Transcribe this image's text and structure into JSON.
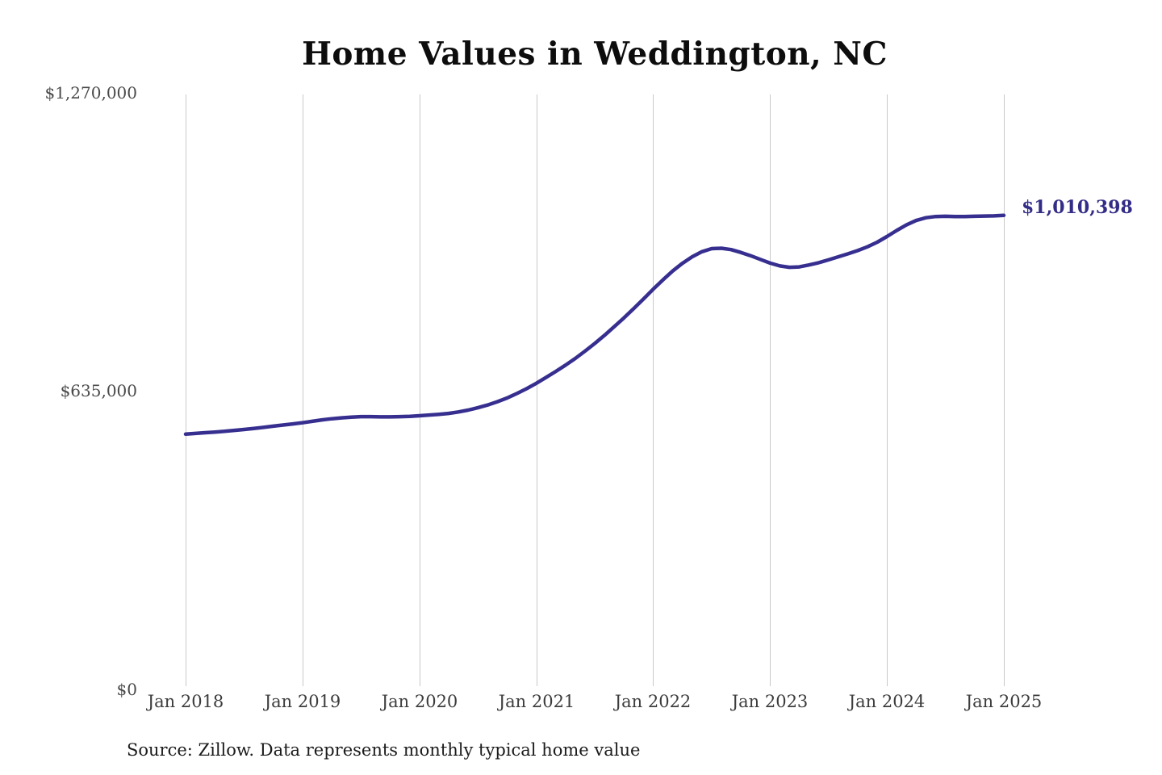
{
  "chart_data": {
    "type": "line",
    "title": "Home Values in Weddington, NC",
    "source_note": "Source: Zillow. Data represents monthly typical home value",
    "end_label": "$1,010,398",
    "end_value": 1010398,
    "x_tick_labels": [
      "Jan 2018",
      "Jan 2019",
      "Jan 2020",
      "Jan 2021",
      "Jan 2022",
      "Jan 2023",
      "Jan 2024",
      "Jan 2025"
    ],
    "y_tick_labels": [
      "$1,270,000",
      "$635,000",
      "$0"
    ],
    "y_tick_values": [
      1270000,
      635000,
      0
    ],
    "ylim": [
      0,
      1270000
    ],
    "grid": "vertical-only",
    "legend": "none",
    "line_color": "#372f8f",
    "gridline_color": "#c9c9c9",
    "background_color": "#ffffff",
    "series": [
      {
        "name": "Monthly typical home value",
        "color": "#372f8f",
        "start": "2018-01",
        "end": "2025-01",
        "interval": "monthly",
        "values": [
          541000,
          542500,
          544000,
          545500,
          547000,
          549000,
          551000,
          553000,
          555500,
          558000,
          560500,
          563000,
          565500,
          568500,
          571500,
          574000,
          576000,
          577500,
          578500,
          578500,
          578000,
          578000,
          578500,
          579000,
          580500,
          582000,
          583500,
          585500,
          588500,
          592500,
          597500,
          603500,
          610500,
          618500,
          628000,
          638500,
          650000,
          662500,
          675500,
          689000,
          703500,
          719000,
          735500,
          753000,
          771500,
          790500,
          810500,
          831000,
          852000,
          872000,
          891000,
          907500,
          921500,
          932500,
          939000,
          940000,
          937000,
          931000,
          924000,
          916000,
          908000,
          902000,
          899000,
          900000,
          904000,
          909000,
          915000,
          921500,
          928000,
          935000,
          943000,
          953000,
          965000,
          978000,
          990000,
          999500,
          1005500,
          1008000,
          1008500,
          1008000,
          1008000,
          1008500,
          1009000,
          1009500,
          1010398
        ]
      }
    ]
  }
}
